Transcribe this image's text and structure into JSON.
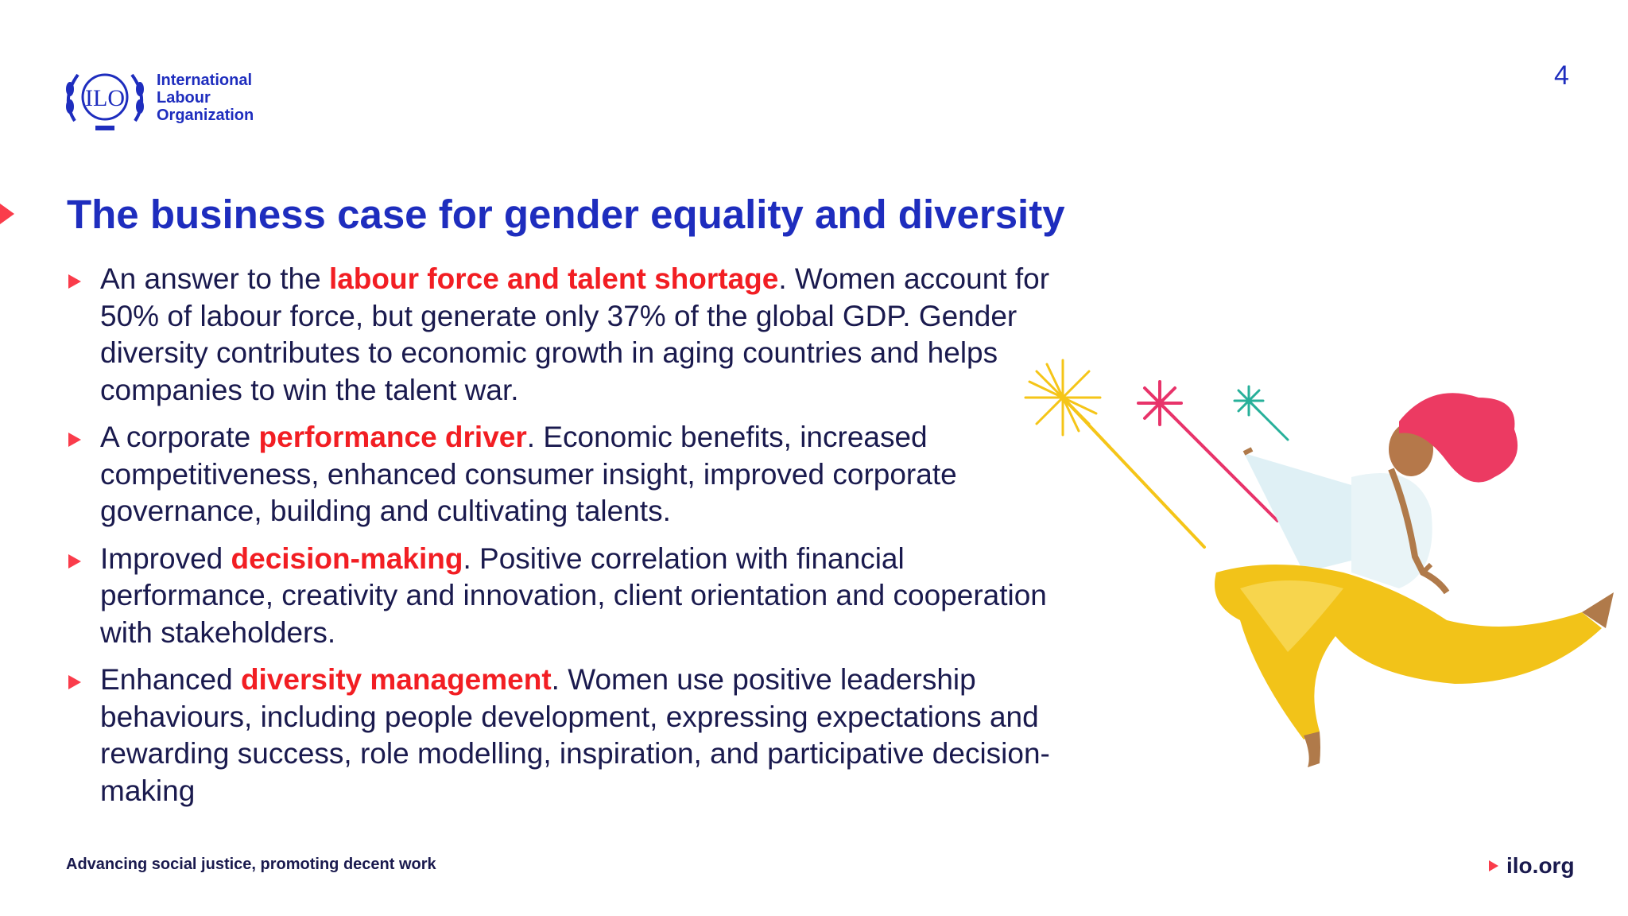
{
  "header": {
    "logo_mark": "ILO",
    "org_name": [
      "International",
      "Labour",
      "Organization"
    ],
    "page_number": "4"
  },
  "title": "The business case for gender equality and diversity",
  "bullets": [
    {
      "before": "An answer to the ",
      "highlight": "labour force and talent shortage",
      "after": ". Women account for 50% of labour force, but generate only 37% of the global GDP. Gender diversity contributes to economic growth in aging countries and helps companies to win the talent war."
    },
    {
      "before": "A corporate ",
      "highlight": "performance driver",
      "after": ". Economic benefits, increased competitiveness, enhanced consumer insight, improved corporate governance, building and cultivating talents."
    },
    {
      "before": "Improved ",
      "highlight": "decision-making",
      "after": ". Positive correlation with financial performance, creativity and innovation, client orientation and cooperation with stakeholders."
    },
    {
      "before": "Enhanced ",
      "highlight": "diversity management",
      "after": ". Women use positive leadership behaviours, including people development, expressing expectations and rewarding success, role modelling, inspiration, and participative decision-making"
    }
  ],
  "footer": {
    "tagline": "Advancing social justice, promoting decent work",
    "link": "ilo.org"
  }
}
